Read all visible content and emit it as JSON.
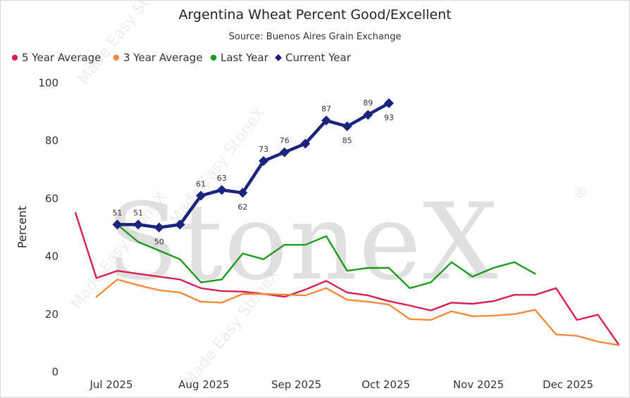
{
  "chart_data": {
    "type": "line",
    "title": "Argentina Wheat Percent Good/Excellent",
    "subtitle": "Source: Buenos Aires Grain Exchange",
    "ylabel": "Percent",
    "ylim": [
      0,
      100
    ],
    "yticks": [
      0,
      20,
      40,
      60,
      80,
      100
    ],
    "x_ticks": [
      {
        "label": "Jul 2025",
        "date": "2025-07-01"
      },
      {
        "label": "Aug 2025",
        "date": "2025-08-01"
      },
      {
        "label": "Sep 2025",
        "date": "2025-09-01"
      },
      {
        "label": "Oct 2025",
        "date": "2025-10-01"
      },
      {
        "label": "Nov 2025",
        "date": "2025-11-01"
      },
      {
        "label": "Dec 2025",
        "date": "2025-12-01"
      }
    ],
    "legend_position": "top-left",
    "series": [
      {
        "name": "5 Year Average",
        "color": "#d6204f",
        "marker": "none",
        "points": [
          {
            "x": "2025-06-19",
            "y": 55
          },
          {
            "x": "2025-06-26",
            "y": 32.5
          },
          {
            "x": "2025-07-03",
            "y": 35
          },
          {
            "x": "2025-07-10",
            "y": 34
          },
          {
            "x": "2025-07-17",
            "y": 33
          },
          {
            "x": "2025-07-24",
            "y": 32
          },
          {
            "x": "2025-07-31",
            "y": 29
          },
          {
            "x": "2025-08-07",
            "y": 28
          },
          {
            "x": "2025-08-14",
            "y": 27.8
          },
          {
            "x": "2025-08-21",
            "y": 27
          },
          {
            "x": "2025-08-28",
            "y": 26
          },
          {
            "x": "2025-09-04",
            "y": 28.5
          },
          {
            "x": "2025-09-11",
            "y": 31.5
          },
          {
            "x": "2025-09-18",
            "y": 27.5
          },
          {
            "x": "2025-09-25",
            "y": 26.5
          },
          {
            "x": "2025-10-02",
            "y": 24.5
          },
          {
            "x": "2025-10-09",
            "y": 23
          },
          {
            "x": "2025-10-16",
            "y": 21.3
          },
          {
            "x": "2025-10-23",
            "y": 24
          },
          {
            "x": "2025-10-30",
            "y": 23.6
          },
          {
            "x": "2025-11-06",
            "y": 24.5
          },
          {
            "x": "2025-11-13",
            "y": 26.7
          },
          {
            "x": "2025-11-20",
            "y": 26.7
          },
          {
            "x": "2025-11-27",
            "y": 29
          },
          {
            "x": "2025-12-04",
            "y": 18
          },
          {
            "x": "2025-12-11",
            "y": 19.8
          },
          {
            "x": "2025-12-18",
            "y": 9.5
          }
        ]
      },
      {
        "name": "3 Year Average",
        "color": "#f58a3c",
        "marker": "none",
        "points": [
          {
            "x": "2025-06-26",
            "y": 26
          },
          {
            "x": "2025-07-03",
            "y": 32
          },
          {
            "x": "2025-07-10",
            "y": 30
          },
          {
            "x": "2025-07-17",
            "y": 28.3
          },
          {
            "x": "2025-07-24",
            "y": 27.5
          },
          {
            "x": "2025-07-31",
            "y": 24.3
          },
          {
            "x": "2025-08-07",
            "y": 24
          },
          {
            "x": "2025-08-14",
            "y": 27
          },
          {
            "x": "2025-08-21",
            "y": 27
          },
          {
            "x": "2025-08-28",
            "y": 26.8
          },
          {
            "x": "2025-09-04",
            "y": 26.5
          },
          {
            "x": "2025-09-11",
            "y": 29
          },
          {
            "x": "2025-09-18",
            "y": 25
          },
          {
            "x": "2025-09-25",
            "y": 24.3
          },
          {
            "x": "2025-10-02",
            "y": 23.3
          },
          {
            "x": "2025-10-09",
            "y": 18.3
          },
          {
            "x": "2025-10-16",
            "y": 18
          },
          {
            "x": "2025-10-23",
            "y": 21
          },
          {
            "x": "2025-10-30",
            "y": 19.3
          },
          {
            "x": "2025-11-06",
            "y": 19.5
          },
          {
            "x": "2025-11-13",
            "y": 20
          },
          {
            "x": "2025-11-20",
            "y": 21.5
          },
          {
            "x": "2025-11-27",
            "y": 13
          },
          {
            "x": "2025-12-04",
            "y": 12.5
          },
          {
            "x": "2025-12-11",
            "y": 10.5
          },
          {
            "x": "2025-12-18",
            "y": 9.3
          }
        ]
      },
      {
        "name": "Last Year",
        "color": "#1e9a1e",
        "marker": "none",
        "points": [
          {
            "x": "2025-07-03",
            "y": 51
          },
          {
            "x": "2025-07-10",
            "y": 45
          },
          {
            "x": "2025-07-17",
            "y": 42
          },
          {
            "x": "2025-07-24",
            "y": 39
          },
          {
            "x": "2025-07-31",
            "y": 31
          },
          {
            "x": "2025-08-07",
            "y": 32
          },
          {
            "x": "2025-08-14",
            "y": 41
          },
          {
            "x": "2025-08-21",
            "y": 39
          },
          {
            "x": "2025-08-28",
            "y": 44
          },
          {
            "x": "2025-09-04",
            "y": 44
          },
          {
            "x": "2025-09-11",
            "y": 47
          },
          {
            "x": "2025-09-18",
            "y": 35
          },
          {
            "x": "2025-09-25",
            "y": 36
          },
          {
            "x": "2025-10-02",
            "y": 36
          },
          {
            "x": "2025-10-09",
            "y": 29
          },
          {
            "x": "2025-10-16",
            "y": 31
          },
          {
            "x": "2025-10-23",
            "y": 38
          },
          {
            "x": "2025-10-30",
            "y": 33
          },
          {
            "x": "2025-11-06",
            "y": 36
          },
          {
            "x": "2025-11-13",
            "y": 38
          },
          {
            "x": "2025-11-20",
            "y": 34
          }
        ]
      },
      {
        "name": "Current Year",
        "color": "#1a237e",
        "marker": "diamond",
        "points": [
          {
            "x": "2025-07-03",
            "y": 51,
            "label": "51"
          },
          {
            "x": "2025-07-10",
            "y": 51,
            "label": "51"
          },
          {
            "x": "2025-07-17",
            "y": 50,
            "label": "50"
          },
          {
            "x": "2025-07-24",
            "y": 51
          },
          {
            "x": "2025-07-31",
            "y": 61,
            "label": "61"
          },
          {
            "x": "2025-08-07",
            "y": 63,
            "label": "63"
          },
          {
            "x": "2025-08-14",
            "y": 62,
            "label": "62"
          },
          {
            "x": "2025-08-21",
            "y": 73,
            "label": "73"
          },
          {
            "x": "2025-08-28",
            "y": 76,
            "label": "76"
          },
          {
            "x": "2025-09-04",
            "y": 79
          },
          {
            "x": "2025-09-11",
            "y": 87,
            "label": "87"
          },
          {
            "x": "2025-09-18",
            "y": 85,
            "label": "85"
          },
          {
            "x": "2025-09-25",
            "y": 89,
            "label": "89"
          },
          {
            "x": "2025-10-02",
            "y": 93,
            "label": "93"
          }
        ]
      }
    ]
  },
  "watermark": {
    "brand": "StoneX",
    "mark": "®",
    "diagonal_text": "Made Easy StoneX"
  }
}
